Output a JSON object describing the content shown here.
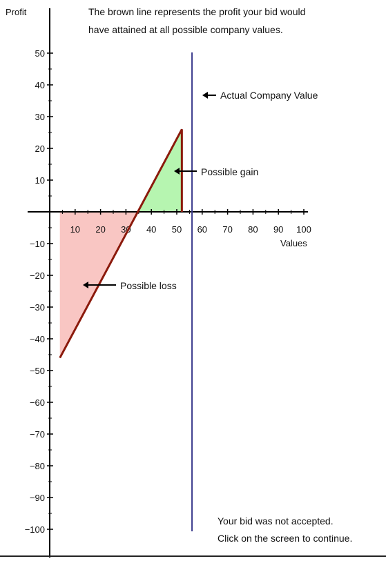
{
  "chart_data": {
    "type": "line",
    "ylabel": "Profit",
    "xlabel": "Values",
    "description": [
      "The brown line represents the profit your bid would",
      "have attained at all possible company values."
    ],
    "x_ticks": [
      10,
      20,
      30,
      40,
      50,
      60,
      70,
      80,
      90,
      100
    ],
    "y_ticks": [
      50,
      40,
      30,
      20,
      10,
      -10,
      -20,
      -30,
      -40,
      -50,
      -60,
      -70,
      -80,
      -90,
      -100
    ],
    "xlim": [
      0,
      100
    ],
    "ylim": [
      -100,
      50
    ],
    "profit_line": {
      "x": [
        4,
        52,
        52
      ],
      "y": [
        -46,
        26,
        0
      ]
    },
    "actual_company_value": 56,
    "annotations": {
      "actual": "Actual Company Value",
      "gain": "Possible gain",
      "loss": "Possible loss"
    },
    "colors": {
      "profit_line": "#8b1a0c",
      "actual_line": "#3a3a8c",
      "gain_fill": "#b6f5b0",
      "loss_fill": "#f9c6c3",
      "axis": "#000000"
    }
  },
  "status": {
    "line1": "Your bid was not accepted.",
    "line2": "Click on the screen to continue."
  }
}
